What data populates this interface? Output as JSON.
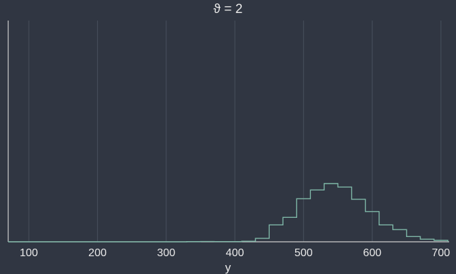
{
  "chart_data": {
    "type": "histogram",
    "title": "ϑ = 2",
    "xlabel": "y",
    "ylabel": "",
    "xlim": [
      70,
      712
    ],
    "ylim": [
      0,
      1.0
    ],
    "xticks": [
      100,
      200,
      300,
      400,
      500,
      600,
      700
    ],
    "grid": true,
    "legend": "none",
    "line_color": "#7fb8a8",
    "background": "#303642",
    "bin_edges": [
      330,
      350,
      370,
      390,
      410,
      430,
      450,
      470,
      490,
      510,
      530,
      550,
      570,
      590,
      610,
      630,
      650,
      670,
      690,
      710
    ],
    "counts": [
      0.003,
      0.005,
      0.004,
      0.004,
      0.01,
      0.06,
      0.29,
      0.42,
      0.74,
      0.89,
      1.0,
      0.94,
      0.73,
      0.52,
      0.29,
      0.21,
      0.09,
      0.045,
      0.025
    ]
  }
}
